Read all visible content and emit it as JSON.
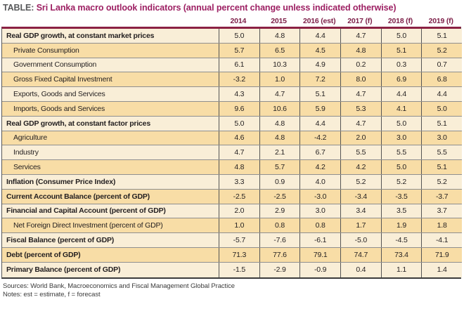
{
  "title": {
    "prefix": "TABLE:",
    "text": "Sri Lanka macro outlook indicators (annual percent change unless indicated otherwise)"
  },
  "table": {
    "columns": [
      "2014",
      "2015",
      "2016 (est)",
      "2017 (f)",
      "2018 (f)",
      "2019 (f)"
    ],
    "rows": [
      {
        "label": "Real GDP growth, at constant market prices",
        "bold": true,
        "indent": false,
        "shaded": false,
        "values": [
          "5.0",
          "4.8",
          "4.4",
          "4.7",
          "5.0",
          "5.1"
        ]
      },
      {
        "label": "Private Consumption",
        "bold": false,
        "indent": true,
        "shaded": true,
        "values": [
          "5.7",
          "6.5",
          "4.5",
          "4.8",
          "5.1",
          "5.2"
        ]
      },
      {
        "label": "Government Consumption",
        "bold": false,
        "indent": true,
        "shaded": false,
        "values": [
          "6.1",
          "10.3",
          "4.9",
          "0.2",
          "0.3",
          "0.7"
        ]
      },
      {
        "label": "Gross Fixed Capital Investment",
        "bold": false,
        "indent": true,
        "shaded": true,
        "values": [
          "-3.2",
          "1.0",
          "7.2",
          "8.0",
          "6.9",
          "6.8"
        ]
      },
      {
        "label": "Exports, Goods and Services",
        "bold": false,
        "indent": true,
        "shaded": false,
        "values": [
          "4.3",
          "4.7",
          "5.1",
          "4.7",
          "4.4",
          "4.4"
        ]
      },
      {
        "label": "Imports, Goods and Services",
        "bold": false,
        "indent": true,
        "shaded": true,
        "values": [
          "9.6",
          "10.6",
          "5.9",
          "5.3",
          "4.1",
          "5.0"
        ]
      },
      {
        "label": "Real GDP growth, at constant factor prices",
        "bold": true,
        "indent": false,
        "shaded": false,
        "values": [
          "5.0",
          "4.8",
          "4.4",
          "4.7",
          "5.0",
          "5.1"
        ]
      },
      {
        "label": "Agriculture",
        "bold": false,
        "indent": true,
        "shaded": true,
        "values": [
          "4.6",
          "4.8",
          "-4.2",
          "2.0",
          "3.0",
          "3.0"
        ]
      },
      {
        "label": "Industry",
        "bold": false,
        "indent": true,
        "shaded": false,
        "values": [
          "4.7",
          "2.1",
          "6.7",
          "5.5",
          "5.5",
          "5.5"
        ]
      },
      {
        "label": "Services",
        "bold": false,
        "indent": true,
        "shaded": true,
        "values": [
          "4.8",
          "5.7",
          "4.2",
          "4.2",
          "5.0",
          "5.1"
        ]
      },
      {
        "label": "Inflation (Consumer Price Index)",
        "bold": true,
        "indent": false,
        "shaded": false,
        "values": [
          "3.3",
          "0.9",
          "4.0",
          "5.2",
          "5.2",
          "5.2"
        ]
      },
      {
        "label": "Current Account Balance (percent of GDP)",
        "bold": true,
        "indent": false,
        "shaded": true,
        "values": [
          "-2.5",
          "-2.5",
          "-3.0",
          "-3.4",
          "-3.5",
          "-3.7"
        ]
      },
      {
        "label": "Financial and Capital Account (percent of GDP)",
        "bold": true,
        "indent": false,
        "shaded": false,
        "values": [
          "2.0",
          "2.9",
          "3.0",
          "3.4",
          "3.5",
          "3.7"
        ]
      },
      {
        "label": "Net Foreign Direct Investment (percent of GDP)",
        "bold": false,
        "indent": true,
        "shaded": true,
        "values": [
          "1.0",
          "0.8",
          "0.8",
          "1.7",
          "1.9",
          "1.8"
        ]
      },
      {
        "label": "Fiscal Balance (percent of GDP)",
        "bold": true,
        "indent": false,
        "shaded": false,
        "values": [
          "-5.7",
          "-7.6",
          "-6.1",
          "-5.0",
          "-4.5",
          "-4.1"
        ]
      },
      {
        "label": "Debt (percent of GDP)",
        "bold": true,
        "indent": false,
        "shaded": true,
        "values": [
          "71.3",
          "77.6",
          "79.1",
          "74.7",
          "73.4",
          "71.9"
        ]
      },
      {
        "label": "Primary Balance (percent of GDP)",
        "bold": true,
        "indent": false,
        "shaded": false,
        "values": [
          "-1.5",
          "-2.9",
          "-0.9",
          "0.4",
          "1.1",
          "1.4"
        ]
      }
    ]
  },
  "footer": {
    "sources": "Sources: World Bank, Macroeconomics and Fiscal Management Global Practice",
    "notes": "Notes: est = estimate, f = forecast"
  },
  "colors": {
    "title_accent": "#9d2063",
    "header_text": "#7e2049",
    "top_rule": "#8b2144",
    "row_light": "#f9eed7",
    "row_shaded": "#f8dda6",
    "bottom_rule": "#3b3b3b"
  }
}
